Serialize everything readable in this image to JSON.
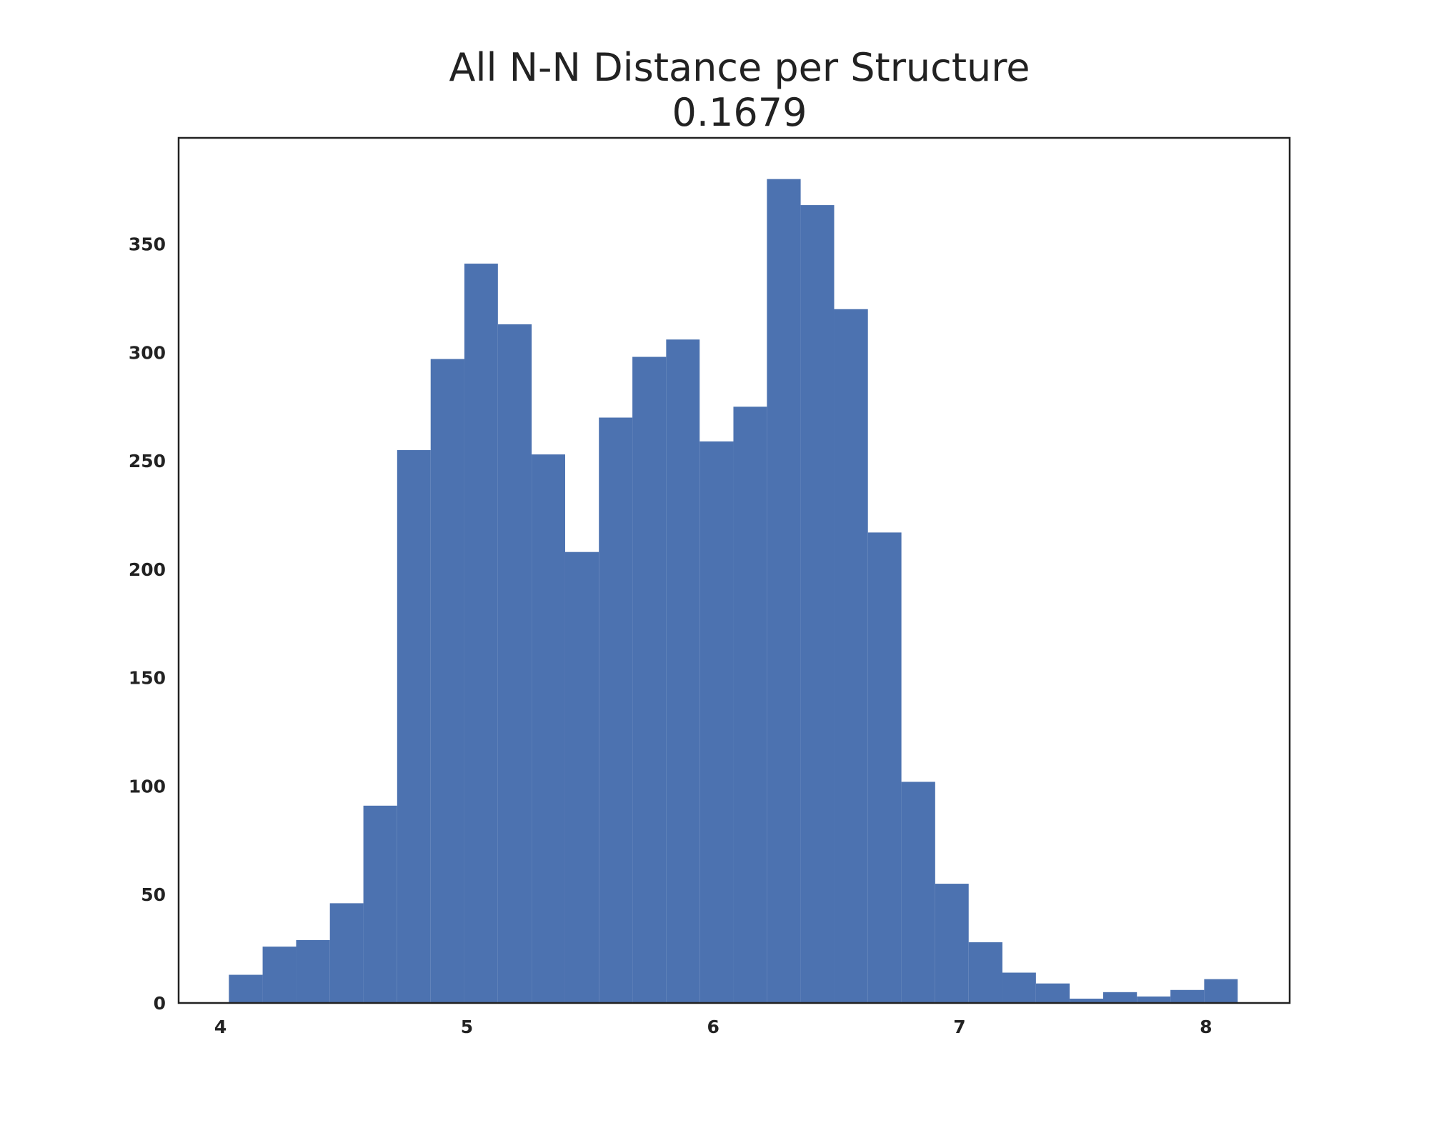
{
  "chart_data": {
    "type": "bar",
    "title": "All N-N Distance per Structure",
    "subtitle": "0.1679",
    "xlabel": "",
    "ylabel": "",
    "xlim": [
      3.83,
      8.34
    ],
    "ylim": [
      0,
      399
    ],
    "x_ticks": [
      4,
      5,
      6,
      7,
      8
    ],
    "y_ticks": [
      0,
      50,
      100,
      150,
      200,
      250,
      300,
      350
    ],
    "grid": false,
    "bar_color": "#4c72b0",
    "bin_edges": [
      4.034,
      4.171,
      4.307,
      4.444,
      4.58,
      4.717,
      4.853,
      4.99,
      5.126,
      5.263,
      5.399,
      5.536,
      5.672,
      5.809,
      5.945,
      6.082,
      6.218,
      6.355,
      6.491,
      6.628,
      6.764,
      6.901,
      7.037,
      7.174,
      7.31,
      7.447,
      7.583,
      7.72,
      7.856,
      7.993,
      8.129
    ],
    "values": [
      13,
      26,
      29,
      46,
      91,
      255,
      297,
      341,
      313,
      253,
      208,
      270,
      298,
      306,
      259,
      275,
      380,
      368,
      320,
      217,
      102,
      55,
      28,
      14,
      9,
      2,
      5,
      3,
      6,
      11
    ]
  }
}
